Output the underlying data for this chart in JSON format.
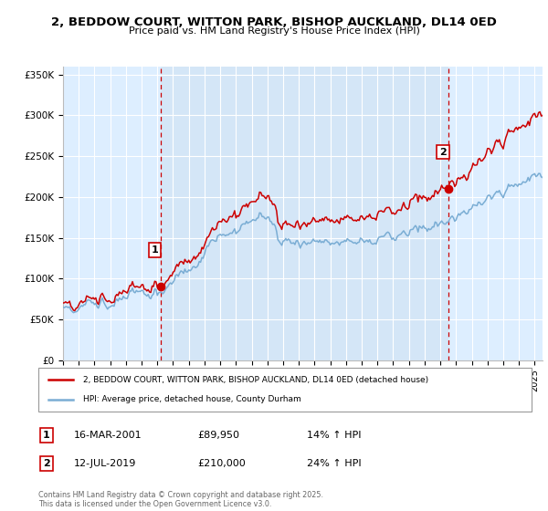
{
  "title": "2, BEDDOW COURT, WITTON PARK, BISHOP AUCKLAND, DL14 0ED",
  "subtitle": "Price paid vs. HM Land Registry's House Price Index (HPI)",
  "ylabel_ticks": [
    "£0",
    "£50K",
    "£100K",
    "£150K",
    "£200K",
    "£250K",
    "£300K",
    "£350K"
  ],
  "ylim": [
    0,
    350000
  ],
  "xlim_start": 1995.0,
  "xlim_end": 2025.5,
  "sale1_date": 2001.21,
  "sale1_price": 89950,
  "sale1_label": "1",
  "sale1_date_str": "16-MAR-2001",
  "sale1_hpi_pct": "14% ↑ HPI",
  "sale2_date": 2019.53,
  "sale2_price": 210000,
  "sale2_label": "2",
  "sale2_date_str": "12-JUL-2019",
  "sale2_hpi_pct": "24% ↑ HPI",
  "line_color_property": "#cc0000",
  "line_color_hpi": "#7aadd4",
  "vline_color": "#cc0000",
  "chart_bg": "#ddeeff",
  "background_color": "#ffffff",
  "grid_color": "#ffffff",
  "legend_label_property": "2, BEDDOW COURT, WITTON PARK, BISHOP AUCKLAND, DL14 0ED (detached house)",
  "legend_label_hpi": "HPI: Average price, detached house, County Durham",
  "footnote": "Contains HM Land Registry data © Crown copyright and database right 2025.\nThis data is licensed under the Open Government Licence v3.0.",
  "table_rows": [
    {
      "label": "1",
      "date": "16-MAR-2001",
      "price": "£89,950",
      "hpi": "14% ↑ HPI"
    },
    {
      "label": "2",
      "date": "12-JUL-2019",
      "price": "£210,000",
      "hpi": "24% ↑ HPI"
    }
  ]
}
